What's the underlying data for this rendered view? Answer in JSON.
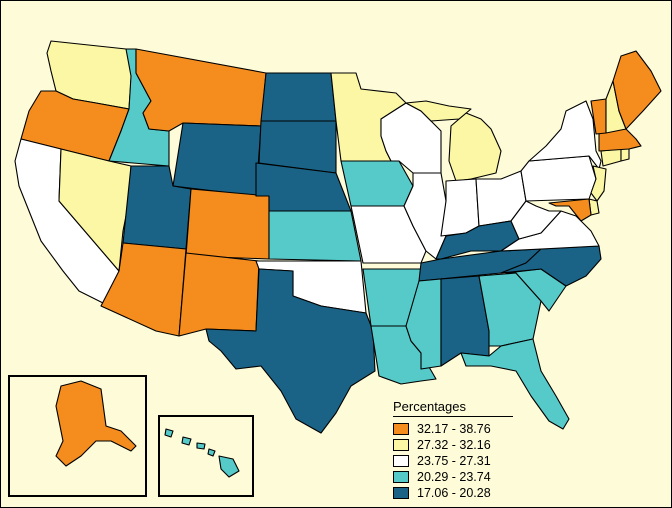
{
  "map": {
    "legend": {
      "title": "Percentages",
      "classes": [
        {
          "label": "32.17 - 38.76",
          "color": "#f58c1e"
        },
        {
          "label": "27.32 - 32.16",
          "color": "#fbf7a4"
        },
        {
          "label": "23.75 - 27.31",
          "color": "#ffffff"
        },
        {
          "label": "20.29 - 23.74",
          "color": "#56c9c9"
        },
        {
          "label": "17.06 - 20.28",
          "color": "#1a6386"
        }
      ]
    },
    "states": [
      {
        "code": "WA",
        "class": 1
      },
      {
        "code": "OR",
        "class": 0
      },
      {
        "code": "CA",
        "class": 2
      },
      {
        "code": "ID",
        "class": 3
      },
      {
        "code": "NV",
        "class": 1
      },
      {
        "code": "MT",
        "class": 0
      },
      {
        "code": "WY",
        "class": 4
      },
      {
        "code": "UT",
        "class": 4
      },
      {
        "code": "AZ",
        "class": 0
      },
      {
        "code": "CO",
        "class": 0
      },
      {
        "code": "NM",
        "class": 0
      },
      {
        "code": "ND",
        "class": 4
      },
      {
        "code": "SD",
        "class": 4
      },
      {
        "code": "NE",
        "class": 4
      },
      {
        "code": "KS",
        "class": 3
      },
      {
        "code": "OK",
        "class": 2
      },
      {
        "code": "TX",
        "class": 4
      },
      {
        "code": "MN",
        "class": 1
      },
      {
        "code": "IA",
        "class": 3
      },
      {
        "code": "MO",
        "class": 2
      },
      {
        "code": "AR",
        "class": 3
      },
      {
        "code": "LA",
        "class": 3
      },
      {
        "code": "WI",
        "class": 2
      },
      {
        "code": "IL",
        "class": 2
      },
      {
        "code": "MI",
        "class": 1
      },
      {
        "code": "IN",
        "class": 2
      },
      {
        "code": "OH",
        "class": 2
      },
      {
        "code": "KY",
        "class": 4
      },
      {
        "code": "TN",
        "class": 4
      },
      {
        "code": "MS",
        "class": 3
      },
      {
        "code": "AL",
        "class": 4
      },
      {
        "code": "GA",
        "class": 3
      },
      {
        "code": "FL",
        "class": 3
      },
      {
        "code": "SC",
        "class": 3
      },
      {
        "code": "NC",
        "class": 4
      },
      {
        "code": "VA",
        "class": 2
      },
      {
        "code": "WV",
        "class": 2
      },
      {
        "code": "PA",
        "class": 2
      },
      {
        "code": "NY",
        "class": 2
      },
      {
        "code": "NJ",
        "class": 1
      },
      {
        "code": "DE",
        "class": 1
      },
      {
        "code": "MD",
        "class": 0
      },
      {
        "code": "CT",
        "class": 1
      },
      {
        "code": "RI",
        "class": 1
      },
      {
        "code": "MA",
        "class": 0
      },
      {
        "code": "VT",
        "class": 0
      },
      {
        "code": "NH",
        "class": 1
      },
      {
        "code": "ME",
        "class": 0
      },
      {
        "code": "AK",
        "class": 0
      },
      {
        "code": "HI",
        "class": 3
      }
    ]
  }
}
